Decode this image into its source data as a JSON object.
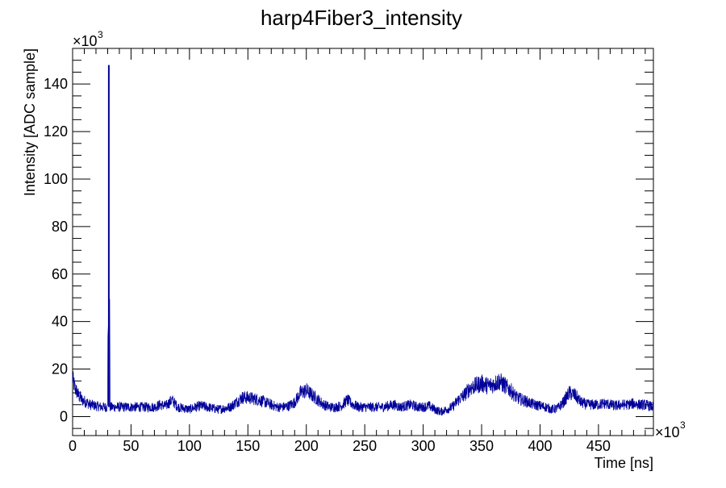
{
  "chart_data": {
    "type": "line",
    "title": "harp4Fiber3_intensity",
    "xlabel": "Time [ns]",
    "ylabel": "Intensity [ADC sample]",
    "x_multiplier_label": "×10",
    "x_multiplier_exp": "3",
    "y_multiplier_label": "×10",
    "y_multiplier_exp": "3",
    "xlim": [
      0,
      497
    ],
    "ylim": [
      -8,
      155
    ],
    "x_ticks": [
      0,
      50,
      100,
      150,
      200,
      250,
      300,
      350,
      400,
      450
    ],
    "x_tick_labels": [
      "0",
      "50",
      "100",
      "150",
      "200",
      "250",
      "300",
      "350",
      "400",
      "450"
    ],
    "y_ticks": [
      0,
      20,
      40,
      60,
      80,
      100,
      120,
      140
    ],
    "y_tick_labels": [
      "0",
      "20",
      "40",
      "60",
      "80",
      "100",
      "120",
      "140"
    ],
    "grid": false,
    "legend": "none",
    "line_color": "#000099",
    "series": [
      {
        "x": [
          0,
          2,
          5,
          8,
          12,
          15,
          20,
          25,
          30,
          31,
          32,
          35,
          40,
          50,
          60,
          70,
          75,
          80,
          85,
          90,
          95,
          100,
          105,
          110,
          115,
          120,
          125,
          130,
          135,
          140,
          145,
          150,
          155,
          160,
          165,
          170,
          175,
          180,
          185,
          190,
          195,
          200,
          205,
          210,
          215,
          220,
          225,
          230,
          235,
          240,
          245,
          250,
          255,
          260,
          265,
          270,
          275,
          280,
          285,
          290,
          295,
          300,
          305,
          310,
          315,
          320,
          325,
          330,
          335,
          340,
          345,
          350,
          355,
          360,
          365,
          370,
          375,
          380,
          385,
          390,
          395,
          400,
          405,
          410,
          415,
          420,
          425,
          430,
          435,
          440,
          445,
          450,
          455,
          460,
          465,
          470,
          475,
          480,
          485,
          490,
          497
        ],
        "y": [
          16,
          12,
          9,
          7,
          6,
          5,
          4.5,
          4,
          4,
          148,
          4,
          4,
          4,
          4,
          4,
          4,
          5,
          4.5,
          7,
          4,
          3.5,
          3,
          4,
          4.5,
          4,
          3.5,
          3,
          3.5,
          4,
          6,
          8,
          8,
          7.5,
          7,
          6,
          5,
          4,
          4,
          4.5,
          6,
          10,
          11,
          9,
          7,
          5,
          4,
          4,
          4.5,
          7,
          5,
          4,
          4,
          4,
          4,
          4,
          4.5,
          5,
          4,
          4.5,
          5,
          4,
          4,
          4.5,
          3,
          2,
          3,
          4,
          7,
          9,
          12,
          13,
          14,
          13,
          13.5,
          15,
          13,
          11,
          8,
          7,
          6,
          5,
          4.5,
          4,
          3,
          3.5,
          6,
          10,
          9,
          6,
          5,
          5,
          5,
          5.5,
          5,
          4.5,
          5,
          5,
          5.5,
          5,
          5,
          4
        ]
      }
    ]
  }
}
